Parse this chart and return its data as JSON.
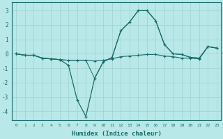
{
  "xlabel": "Humidex (Indice chaleur)",
  "bg_color": "#b8e8e8",
  "grid_color": "#a0d0d0",
  "line_color": "#1a6b6b",
  "xlim": [
    -0.5,
    23.5
  ],
  "ylim": [
    -4.6,
    3.6
  ],
  "yticks": [
    -4,
    -3,
    -2,
    -1,
    0,
    1,
    2,
    3
  ],
  "xticks": [
    0,
    1,
    2,
    3,
    4,
    5,
    6,
    7,
    8,
    9,
    10,
    11,
    12,
    13,
    14,
    15,
    16,
    17,
    18,
    19,
    20,
    21,
    22,
    23
  ],
  "series1": [
    [
      0,
      0.0
    ],
    [
      1,
      -0.1
    ],
    [
      2,
      -0.1
    ],
    [
      3,
      -0.3
    ],
    [
      4,
      -0.35
    ],
    [
      5,
      -0.4
    ],
    [
      6,
      -0.8
    ],
    [
      7,
      -3.2
    ],
    [
      8,
      -4.35
    ],
    [
      9,
      -1.7
    ],
    [
      10,
      -0.55
    ],
    [
      11,
      -0.25
    ],
    [
      12,
      1.6
    ],
    [
      13,
      2.2
    ],
    [
      14,
      3.0
    ],
    [
      15,
      3.0
    ],
    [
      16,
      2.3
    ],
    [
      17,
      0.65
    ],
    [
      18,
      0.0
    ],
    [
      19,
      -0.05
    ],
    [
      20,
      -0.25
    ],
    [
      21,
      -0.3
    ],
    [
      22,
      0.5
    ],
    [
      23,
      0.4
    ]
  ],
  "series2": [
    [
      0,
      0.0
    ],
    [
      1,
      -0.1
    ],
    [
      2,
      -0.1
    ],
    [
      3,
      -0.3
    ],
    [
      4,
      -0.35
    ],
    [
      5,
      -0.4
    ],
    [
      6,
      -0.45
    ],
    [
      7,
      -0.45
    ],
    [
      8,
      -0.45
    ],
    [
      9,
      -0.5
    ],
    [
      10,
      -0.45
    ],
    [
      11,
      -0.35
    ],
    [
      12,
      -0.2
    ],
    [
      13,
      -0.15
    ],
    [
      14,
      -0.1
    ],
    [
      15,
      -0.05
    ],
    [
      16,
      -0.05
    ],
    [
      17,
      -0.15
    ],
    [
      18,
      -0.2
    ],
    [
      19,
      -0.3
    ],
    [
      20,
      -0.3
    ],
    [
      21,
      -0.35
    ],
    [
      22,
      0.5
    ],
    [
      23,
      0.4
    ]
  ],
  "series3": [
    [
      0,
      0.0
    ],
    [
      1,
      -0.1
    ],
    [
      2,
      -0.1
    ],
    [
      3,
      -0.3
    ],
    [
      4,
      -0.35
    ],
    [
      5,
      -0.4
    ],
    [
      6,
      -0.45
    ],
    [
      7,
      -0.45
    ],
    [
      8,
      -0.45
    ],
    [
      9,
      -1.7
    ],
    [
      10,
      -0.55
    ],
    [
      11,
      -0.25
    ],
    [
      12,
      1.6
    ],
    [
      13,
      2.2
    ],
    [
      14,
      3.0
    ],
    [
      15,
      3.0
    ],
    [
      16,
      2.3
    ],
    [
      17,
      0.65
    ],
    [
      18,
      0.0
    ],
    [
      19,
      -0.05
    ],
    [
      20,
      -0.25
    ],
    [
      21,
      -0.3
    ],
    [
      22,
      0.5
    ],
    [
      23,
      0.4
    ]
  ]
}
